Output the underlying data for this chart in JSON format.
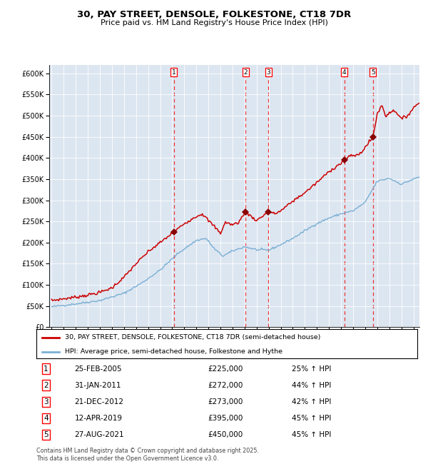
{
  "title": "30, PAY STREET, DENSOLE, FOLKESTONE, CT18 7DR",
  "subtitle": "Price paid vs. HM Land Registry's House Price Index (HPI)",
  "legend_line1": "30, PAY STREET, DENSOLE, FOLKESTONE, CT18 7DR (semi-detached house)",
  "legend_line2": "HPI: Average price, semi-detached house, Folkestone and Hythe",
  "footer": "Contains HM Land Registry data © Crown copyright and database right 2025.\nThis data is licensed under the Open Government Licence v3.0.",
  "sales": [
    {
      "num": 1,
      "date": "25-FEB-2005",
      "price": 225000,
      "hpi_pct": "25% ↑ HPI",
      "date_dec": 2005.14
    },
    {
      "num": 2,
      "date": "31-JAN-2011",
      "price": 272000,
      "hpi_pct": "44% ↑ HPI",
      "date_dec": 2011.08
    },
    {
      "num": 3,
      "date": "21-DEC-2012",
      "price": 273000,
      "hpi_pct": "42% ↑ HPI",
      "date_dec": 2012.97
    },
    {
      "num": 4,
      "date": "12-APR-2019",
      "price": 395000,
      "hpi_pct": "45% ↑ HPI",
      "date_dec": 2019.28
    },
    {
      "num": 5,
      "date": "27-AUG-2021",
      "price": 450000,
      "hpi_pct": "45% ↑ HPI",
      "date_dec": 2021.65
    }
  ],
  "hpi_color": "#7bafd4",
  "price_color": "#cc0000",
  "marker_color": "#880000",
  "vline_color": "#ee3333",
  "plot_bg_color": "#dce6f1",
  "grid_color": "#ffffff",
  "ylim": [
    0,
    620000
  ],
  "ytick_step": 50000,
  "xstart": 1995,
  "xend": 2025.5,
  "hpi_anchors": {
    "1995.0": 48000,
    "1997.0": 55000,
    "1999.0": 63000,
    "2001.0": 80000,
    "2002.5": 105000,
    "2004.0": 135000,
    "2005.5": 175000,
    "2007.0": 205000,
    "2007.8": 210000,
    "2008.5": 185000,
    "2009.2": 168000,
    "2010.0": 180000,
    "2011.0": 190000,
    "2012.0": 183000,
    "2013.0": 182000,
    "2014.0": 195000,
    "2015.0": 210000,
    "2016.0": 228000,
    "2017.0": 245000,
    "2018.0": 258000,
    "2019.0": 268000,
    "2020.0": 275000,
    "2021.0": 295000,
    "2022.0": 345000,
    "2023.0": 352000,
    "2024.0": 338000,
    "2025.0": 350000,
    "2025.5": 355000
  },
  "price_anchors": {
    "1995.0": 63000,
    "1996.0": 67000,
    "1997.0": 71000,
    "1998.0": 76000,
    "1999.0": 82000,
    "2000.0": 93000,
    "2001.0": 118000,
    "2002.0": 150000,
    "2003.0": 178000,
    "2004.0": 200000,
    "2005.14": 225000,
    "2006.0": 245000,
    "2007.0": 262000,
    "2007.5": 268000,
    "2008.0": 252000,
    "2008.5": 238000,
    "2009.0": 222000,
    "2009.4": 248000,
    "2010.0": 242000,
    "2010.5": 248000,
    "2011.08": 272000,
    "2011.5": 263000,
    "2012.0": 252000,
    "2012.97": 273000,
    "2013.5": 268000,
    "2014.0": 275000,
    "2015.0": 298000,
    "2016.0": 318000,
    "2017.0": 342000,
    "2018.0": 368000,
    "2019.0": 388000,
    "2019.28": 395000,
    "2019.8": 405000,
    "2020.5": 408000,
    "2021.0": 425000,
    "2021.65": 450000,
    "2022.0": 505000,
    "2022.4": 525000,
    "2022.7": 498000,
    "2023.0": 508000,
    "2023.5": 512000,
    "2024.0": 492000,
    "2024.5": 500000,
    "2025.0": 518000,
    "2025.4": 530000
  }
}
